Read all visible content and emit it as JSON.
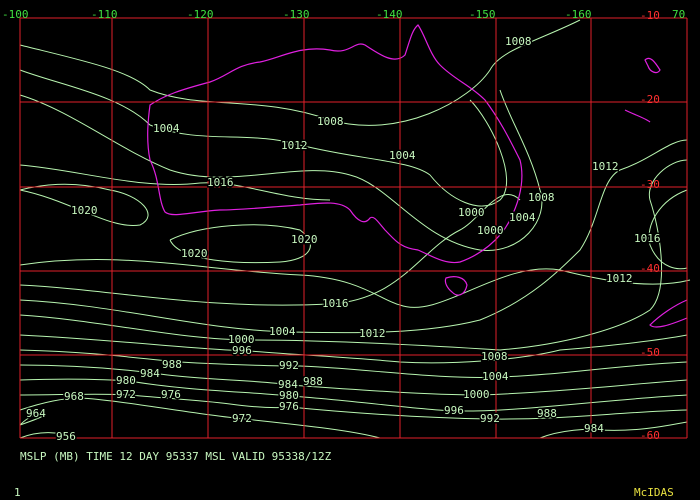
{
  "map": {
    "longitude_labels": [
      "-100",
      "-110",
      "-120",
      "-130",
      "-140",
      "-150",
      "-160",
      "70"
    ],
    "latitude_labels": [
      "-10",
      "-20",
      "-30",
      "-40",
      "-50",
      "-60"
    ],
    "isobar_labels": [
      "1008",
      "1004",
      "1008",
      "1012",
      "1004",
      "1012",
      "1016",
      "1008",
      "1020",
      "1000",
      "1004",
      "1000",
      "1020",
      "1016",
      "1020",
      "1012",
      "1016",
      "1004",
      "1012",
      "1000",
      "996",
      "1008",
      "988",
      "992",
      "984",
      "1004",
      "980",
      "984",
      "988",
      "972",
      "976",
      "968",
      "980",
      "1000",
      "976",
      "964",
      "996",
      "988",
      "972",
      "992",
      "984",
      "956"
    ]
  },
  "caption": "MSLP (MB) TIME 12 DAY 95337 MSL VALID 95338/12Z",
  "footer": {
    "frame": "1",
    "brand": "McIDAS"
  }
}
